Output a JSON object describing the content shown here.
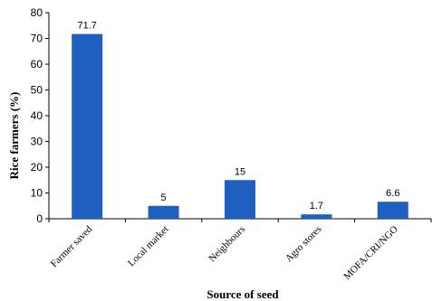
{
  "chart_data": {
    "type": "bar",
    "categories": [
      "Farmer saved",
      "Local market",
      "Neighbours",
      "Agro stores",
      "MOFA/CRI/NGO"
    ],
    "values": [
      71.7,
      5,
      15,
      1.7,
      6.6
    ],
    "data_labels": [
      "71.7",
      "5",
      "15",
      "1.7",
      "6.6"
    ],
    "title": "",
    "xlabel": "Source of seed",
    "ylabel": "Rice farmers (%)",
    "ylim": [
      0,
      80
    ],
    "yticks": [
      0,
      10,
      20,
      30,
      40,
      50,
      60,
      70,
      80
    ],
    "grid": false,
    "legend": "none",
    "bar_color": "#1f5fbf"
  }
}
